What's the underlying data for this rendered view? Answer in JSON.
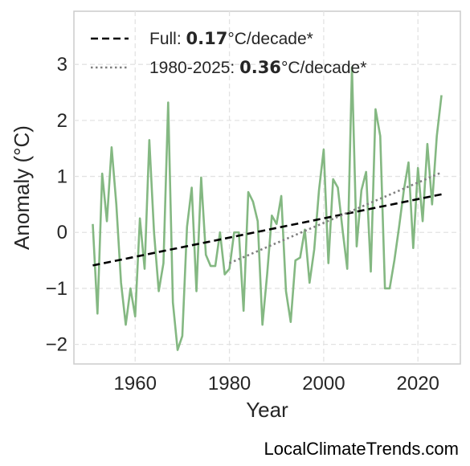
{
  "chart_data": {
    "type": "line",
    "xlabel": "Year",
    "ylabel": "Anomaly (°C)",
    "xlim": [
      1947,
      2029
    ],
    "ylim": [
      -2.35,
      3.95
    ],
    "xticks": [
      1960,
      1980,
      2000,
      2020
    ],
    "yticks": [
      -2,
      -1,
      0,
      1,
      2,
      3
    ],
    "grid": true,
    "legend_position": "top-left",
    "x": [
      1951,
      1952,
      1953,
      1954,
      1955,
      1956,
      1957,
      1958,
      1959,
      1960,
      1961,
      1962,
      1963,
      1964,
      1965,
      1966,
      1967,
      1968,
      1969,
      1970,
      1971,
      1972,
      1973,
      1974,
      1975,
      1976,
      1977,
      1978,
      1979,
      1980,
      1981,
      1982,
      1983,
      1984,
      1985,
      1986,
      1987,
      1988,
      1989,
      1990,
      1991,
      1992,
      1993,
      1994,
      1995,
      1996,
      1997,
      1998,
      1999,
      2000,
      2001,
      2002,
      2003,
      2004,
      2005,
      2006,
      2007,
      2008,
      2009,
      2010,
      2011,
      2012,
      2013,
      2014,
      2015,
      2016,
      2017,
      2018,
      2019,
      2020,
      2021,
      2022,
      2023,
      2024,
      2025
    ],
    "series": [
      {
        "color": "#84b882",
        "values": [
          0.15,
          -1.45,
          1.05,
          0.2,
          1.52,
          0.5,
          -0.9,
          -1.65,
          -1.0,
          -1.5,
          0.25,
          -0.65,
          1.65,
          0.0,
          -1.05,
          -0.55,
          2.32,
          -1.25,
          -2.1,
          -1.85,
          0.1,
          0.8,
          -1.05,
          0.98,
          -0.4,
          -0.6,
          -0.6,
          0.0,
          -0.75,
          -0.65,
          0.0,
          0.0,
          -1.4,
          0.72,
          0.55,
          0.2,
          -1.65,
          -0.75,
          0.3,
          0.15,
          0.65,
          -1.05,
          -1.6,
          -0.5,
          -0.45,
          0.05,
          -0.9,
          -0.3,
          0.75,
          1.48,
          -0.55,
          0.95,
          0.8,
          0.05,
          -0.65,
          2.95,
          -0.25,
          0.75,
          1.08,
          -0.7,
          2.2,
          1.72,
          -1.0,
          -1.0,
          -0.5,
          0.1,
          0.75,
          1.25,
          -0.28,
          1.15,
          0.2,
          1.58,
          0.5,
          1.72,
          2.45
        ]
      }
    ],
    "trends": [
      {
        "label_prefix": "Full: ",
        "label_value": "0.17",
        "label_suffix": "°C/decade*",
        "style": "dashed",
        "color": "#000000",
        "x": [
          1951,
          2025
        ],
        "y": [
          -0.59,
          0.68
        ]
      },
      {
        "label_prefix": "1980-2025: ",
        "label_value": "0.36",
        "label_suffix": "°C/decade*",
        "style": "dotted",
        "color": "#808080",
        "x": [
          1980,
          2025
        ],
        "y": [
          -0.55,
          1.07
        ]
      }
    ]
  },
  "credit": "LocalClimateTrends.com"
}
